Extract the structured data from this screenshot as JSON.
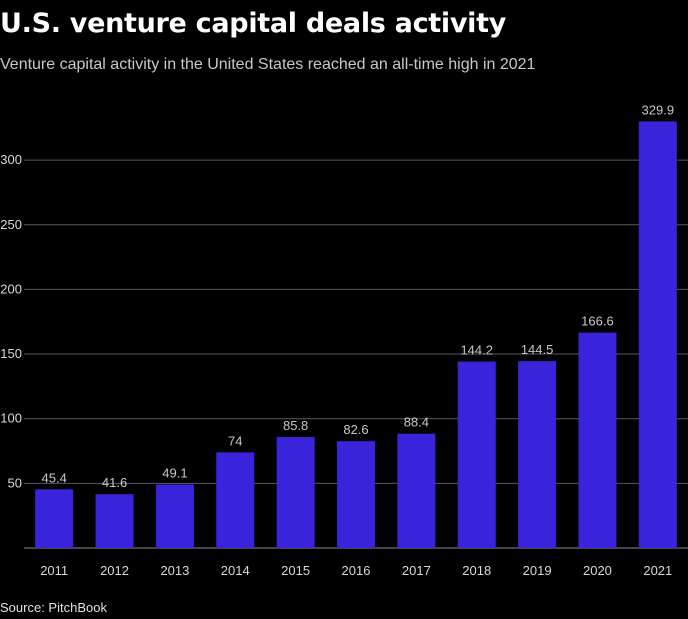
{
  "title": "U.S. venture capital deals activity",
  "subtitle": "Venture capital activity in the United States reached an all-time high in 2021",
  "source": "Source: PitchBook",
  "colors": {
    "bar": "#3a24db",
    "grid": "#5a5a5a",
    "background": "#000000"
  },
  "chart_data": {
    "type": "bar",
    "categories": [
      "2011",
      "2012",
      "2013",
      "2014",
      "2015",
      "2016",
      "2017",
      "2018",
      "2019",
      "2020",
      "2021"
    ],
    "values": [
      45.4,
      41.6,
      49.1,
      74,
      85.8,
      82.6,
      88.4,
      144.2,
      144.5,
      166.6,
      329.9
    ],
    "value_labels": [
      "45.4",
      "41.6",
      "49.1",
      "74",
      "85.8",
      "82.6",
      "88.4",
      "144.2",
      "144.5",
      "166.6",
      "329.9"
    ],
    "yticks": [
      50,
      100,
      150,
      200,
      250,
      300
    ],
    "ytick_labels": [
      "50",
      "100",
      "150",
      "200",
      "250",
      "300"
    ],
    "ylim": [
      0,
      330
    ],
    "grid": true,
    "legend": "none"
  }
}
